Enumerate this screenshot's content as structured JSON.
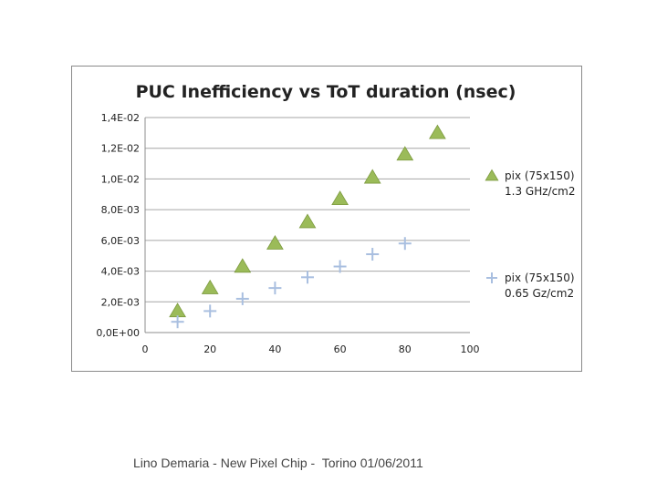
{
  "chart_data": {
    "type": "scatter",
    "title": "PUC Inefficiency vs ToT duration (nsec)",
    "xlabel": "",
    "ylabel": "",
    "xlim": [
      0,
      100
    ],
    "ylim": [
      0,
      0.014
    ],
    "x_ticks": [
      0,
      20,
      40,
      60,
      80,
      100
    ],
    "x_tick_labels": [
      "0",
      "20",
      "40",
      "60",
      "80",
      "100"
    ],
    "y_ticks": [
      0,
      0.002,
      0.004,
      0.006,
      0.008,
      0.01,
      0.012,
      0.014
    ],
    "y_tick_labels": [
      "0,0E+00",
      "2,0E-03",
      "4,0E-03",
      "6,0E-03",
      "8,0E-03",
      "1,0E-02",
      "1,2E-02",
      "1,4E-02"
    ],
    "grid": "horizontal",
    "legend_position": "right",
    "series": [
      {
        "name": "pix (75x150) 1.3 GHz/cm2",
        "legend_lines": [
          "pix (75x150)",
          "1.3 GHz/cm2"
        ],
        "marker": "triangle",
        "color": "#9bbb59",
        "x": [
          10,
          20,
          30,
          40,
          50,
          60,
          70,
          80,
          90
        ],
        "y": [
          0.0014,
          0.0029,
          0.0043,
          0.0058,
          0.0072,
          0.0087,
          0.0101,
          0.0116,
          0.013
        ]
      },
      {
        "name": "pix (75x150) 0.65 Gz/cm2",
        "legend_lines": [
          "pix (75x150)",
          "0.65 Gz/cm2"
        ],
        "marker": "plus",
        "color": "#a9bfe0",
        "x": [
          10,
          20,
          30,
          40,
          50,
          60,
          70,
          80
        ],
        "y": [
          0.0007,
          0.0014,
          0.0022,
          0.0029,
          0.0036,
          0.0043,
          0.0051,
          0.0058
        ]
      }
    ]
  },
  "footer": {
    "text": "Lino Demaria - New Pixel Chip -  Torino 01/06/2011"
  }
}
